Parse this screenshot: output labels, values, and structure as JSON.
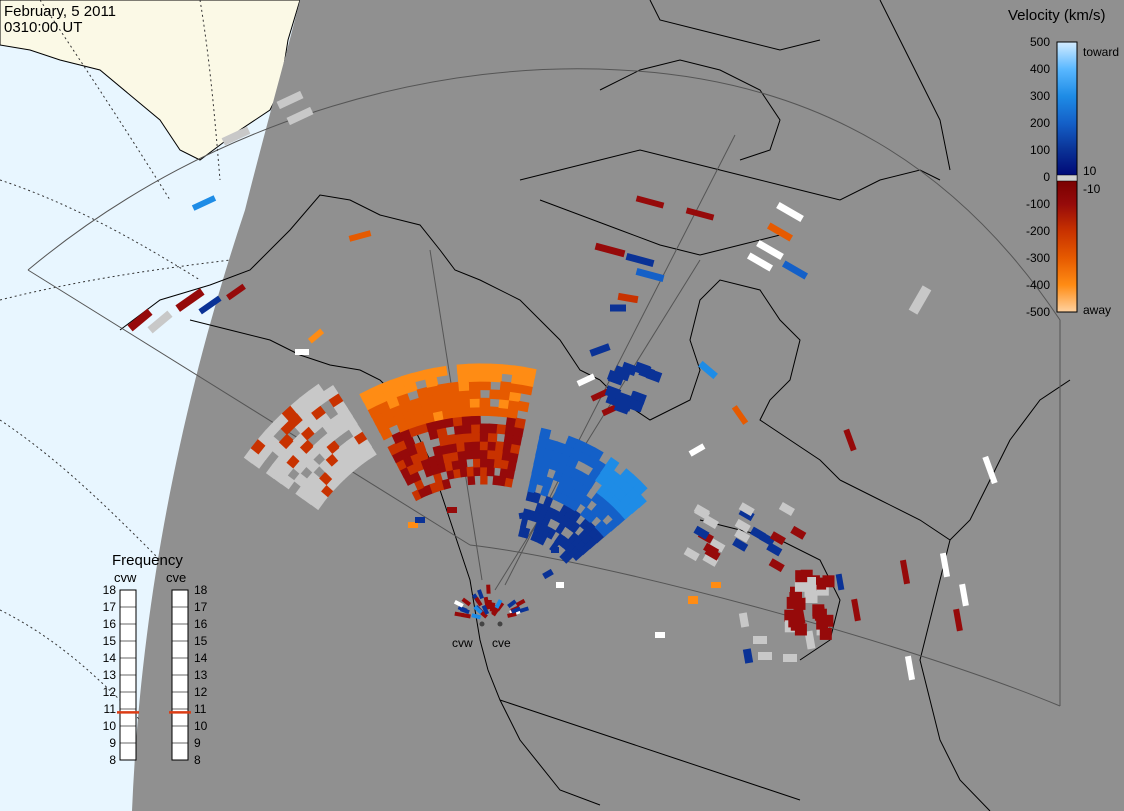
{
  "header": {
    "date": "February, 5 2011",
    "time": "0310:00 UT"
  },
  "colors": {
    "ocean": "#e8f6ff",
    "land_day": "#fbf9e6",
    "night": "#909090",
    "coast": "#000000",
    "fov": "#555555",
    "ground_scatter": "#c8c8c8"
  },
  "colorbar": {
    "title": "Velocity (km/s)",
    "ticks": [
      500,
      400,
      300,
      200,
      100,
      10,
      0,
      -10,
      -100,
      -200,
      -300,
      -400,
      -500
    ],
    "tick_labels": [
      "500",
      "400",
      "300",
      "200",
      "100",
      "10",
      "0",
      "-10",
      "-100",
      "-200",
      "-300",
      "-400",
      "-500"
    ],
    "toward_label": "toward",
    "away_label": "away",
    "stops": [
      {
        "v": 500,
        "color": "#d4ecff"
      },
      {
        "v": 400,
        "color": "#5ab8ff"
      },
      {
        "v": 300,
        "color": "#1e8ce6"
      },
      {
        "v": 200,
        "color": "#1460c8"
      },
      {
        "v": 100,
        "color": "#0a3296"
      },
      {
        "v": 10,
        "color": "#000a78"
      },
      {
        "v": -10,
        "color": "#780000"
      },
      {
        "v": -100,
        "color": "#960a0a"
      },
      {
        "v": -200,
        "color": "#c83200"
      },
      {
        "v": -300,
        "color": "#e65a00"
      },
      {
        "v": -400,
        "color": "#ff8c14"
      },
      {
        "v": -500,
        "color": "#ffd2a0"
      }
    ]
  },
  "frequency": {
    "title": "Frequency",
    "radars": [
      {
        "name": "cvw",
        "value": 10.8,
        "marker_color": "#dc3c14"
      },
      {
        "name": "cve",
        "value": 10.8,
        "marker_color": "#dc3c14"
      }
    ],
    "ticks": [
      18,
      17,
      16,
      15,
      14,
      13,
      12,
      11,
      10,
      9,
      8
    ],
    "tick_labels": [
      "18",
      "17",
      "16",
      "15",
      "14",
      "13",
      "12",
      "11",
      "10",
      "9",
      "8"
    ]
  },
  "sites": [
    {
      "name": "cvw"
    },
    {
      "name": "cve"
    }
  ]
}
